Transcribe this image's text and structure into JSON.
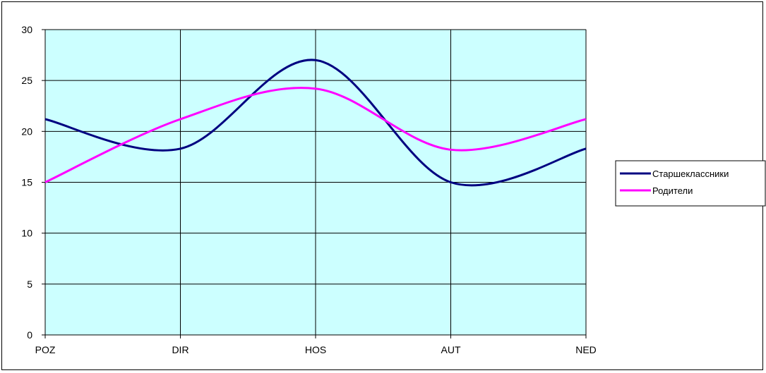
{
  "chart_data": {
    "type": "line",
    "categories": [
      "POZ",
      "DIR",
      "HOS",
      "AUT",
      "NED"
    ],
    "series": [
      {
        "name": "Старшеклассники",
        "color": "#000080",
        "values": [
          21.2,
          18.3,
          27.0,
          15.0,
          18.3
        ]
      },
      {
        "name": "Родители",
        "color": "#FF00FF",
        "values": [
          15.0,
          21.2,
          24.2,
          18.2,
          21.2
        ]
      }
    ],
    "ylim": [
      0,
      30
    ],
    "yticks": [
      "0",
      "5",
      "10",
      "15",
      "20",
      "25",
      "30"
    ],
    "title": "",
    "xlabel": "",
    "ylabel": "",
    "grid": true,
    "smooth": true,
    "plot_background": "#CCFFFF",
    "legend_position": "right"
  }
}
